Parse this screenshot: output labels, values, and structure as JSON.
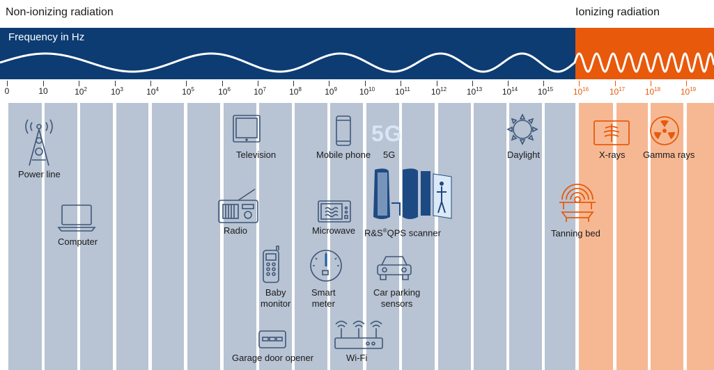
{
  "headers": {
    "left": "Non-ionizing radiation",
    "right": "Ionizing radiation",
    "axis_title": "Frequency in Hz"
  },
  "ticks": [
    {
      "base": "0",
      "exp": ""
    },
    {
      "base": "10",
      "exp": ""
    },
    {
      "base": "10",
      "exp": "2"
    },
    {
      "base": "10",
      "exp": "3"
    },
    {
      "base": "10",
      "exp": "4"
    },
    {
      "base": "10",
      "exp": "5"
    },
    {
      "base": "10",
      "exp": "6"
    },
    {
      "base": "10",
      "exp": "7"
    },
    {
      "base": "10",
      "exp": "8"
    },
    {
      "base": "10",
      "exp": "9"
    },
    {
      "base": "10",
      "exp": "10"
    },
    {
      "base": "10",
      "exp": "11"
    },
    {
      "base": "10",
      "exp": "12"
    },
    {
      "base": "10",
      "exp": "13"
    },
    {
      "base": "10",
      "exp": "14"
    },
    {
      "base": "10",
      "exp": "15"
    },
    {
      "base": "10",
      "exp": "16"
    },
    {
      "base": "10",
      "exp": "17"
    },
    {
      "base": "10",
      "exp": "18"
    },
    {
      "base": "10",
      "exp": "19"
    }
  ],
  "items": {
    "power_line": "Power line",
    "computer": "Computer",
    "radio": "Radio",
    "television": "Television",
    "baby_monitor_1": "Baby",
    "baby_monitor_2": "monitor",
    "garage_door": "Garage door opener",
    "mobile_phone": "Mobile phone",
    "fiveg": "5G",
    "fiveg_logo": "5G",
    "microwave": "Microwave",
    "smart_meter_1": "Smart",
    "smart_meter_2": "meter",
    "wifi": "Wi-Fi",
    "scanner_pre": "R&S",
    "scanner_reg": "®",
    "scanner_post": "QPS scanner",
    "car_1": "Car parking",
    "car_2": "sensors",
    "daylight": "Daylight",
    "tanning_bed": "Tanning bed",
    "xrays": "X-rays",
    "gamma": "Gamma rays"
  },
  "colors": {
    "navy": "#0d3c73",
    "orange": "#e8590c",
    "column_blue": "#b8c3d3",
    "column_orange": "#f6b892",
    "icon": "#3d5678",
    "icon_orange": "#e8590c"
  }
}
